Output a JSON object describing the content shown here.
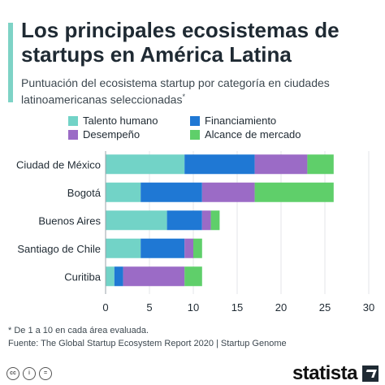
{
  "header": {
    "title": "Los principales ecosistemas de startups en América Latina",
    "subtitle": "Puntuación del ecosistema startup por categoría en ciudades latinoamericanas seleccionadas",
    "subtitle_mark": "*",
    "accent_color": "#7ed3c6"
  },
  "chart_data": {
    "type": "bar",
    "orientation": "horizontal",
    "stacked": true,
    "categories": [
      "Ciudad de México",
      "Bogotá",
      "Buenos Aires",
      "Santiago de Chile",
      "Curitiba"
    ],
    "series": [
      {
        "name": "Talento humano",
        "color": "#72d3c7",
        "values": [
          9,
          4,
          7,
          4,
          1
        ]
      },
      {
        "name": "Financiamiento",
        "color": "#1f78d4",
        "values": [
          8,
          7,
          4,
          5,
          1
        ]
      },
      {
        "name": "Desempeño",
        "color": "#9b6bc6",
        "values": [
          6,
          6,
          1,
          1,
          7
        ]
      },
      {
        "name": "Alcance de mercado",
        "color": "#5fcf6a",
        "values": [
          3,
          9,
          1,
          1,
          2
        ]
      }
    ],
    "xlim": [
      0,
      30
    ],
    "xticks": [
      "0",
      "5",
      "10",
      "15",
      "20",
      "25",
      "30"
    ],
    "grid": true,
    "legend_position": "top"
  },
  "notes": {
    "footnote": "* De 1 a 10 en cada área evaluada.",
    "source": "Fuente: The Global Startup Ecosystem Report 2020 | Startup Genome"
  },
  "footer": {
    "license_icons": [
      "cc-icon",
      "attribution-icon",
      "equal-icon"
    ],
    "brand": "statista"
  }
}
